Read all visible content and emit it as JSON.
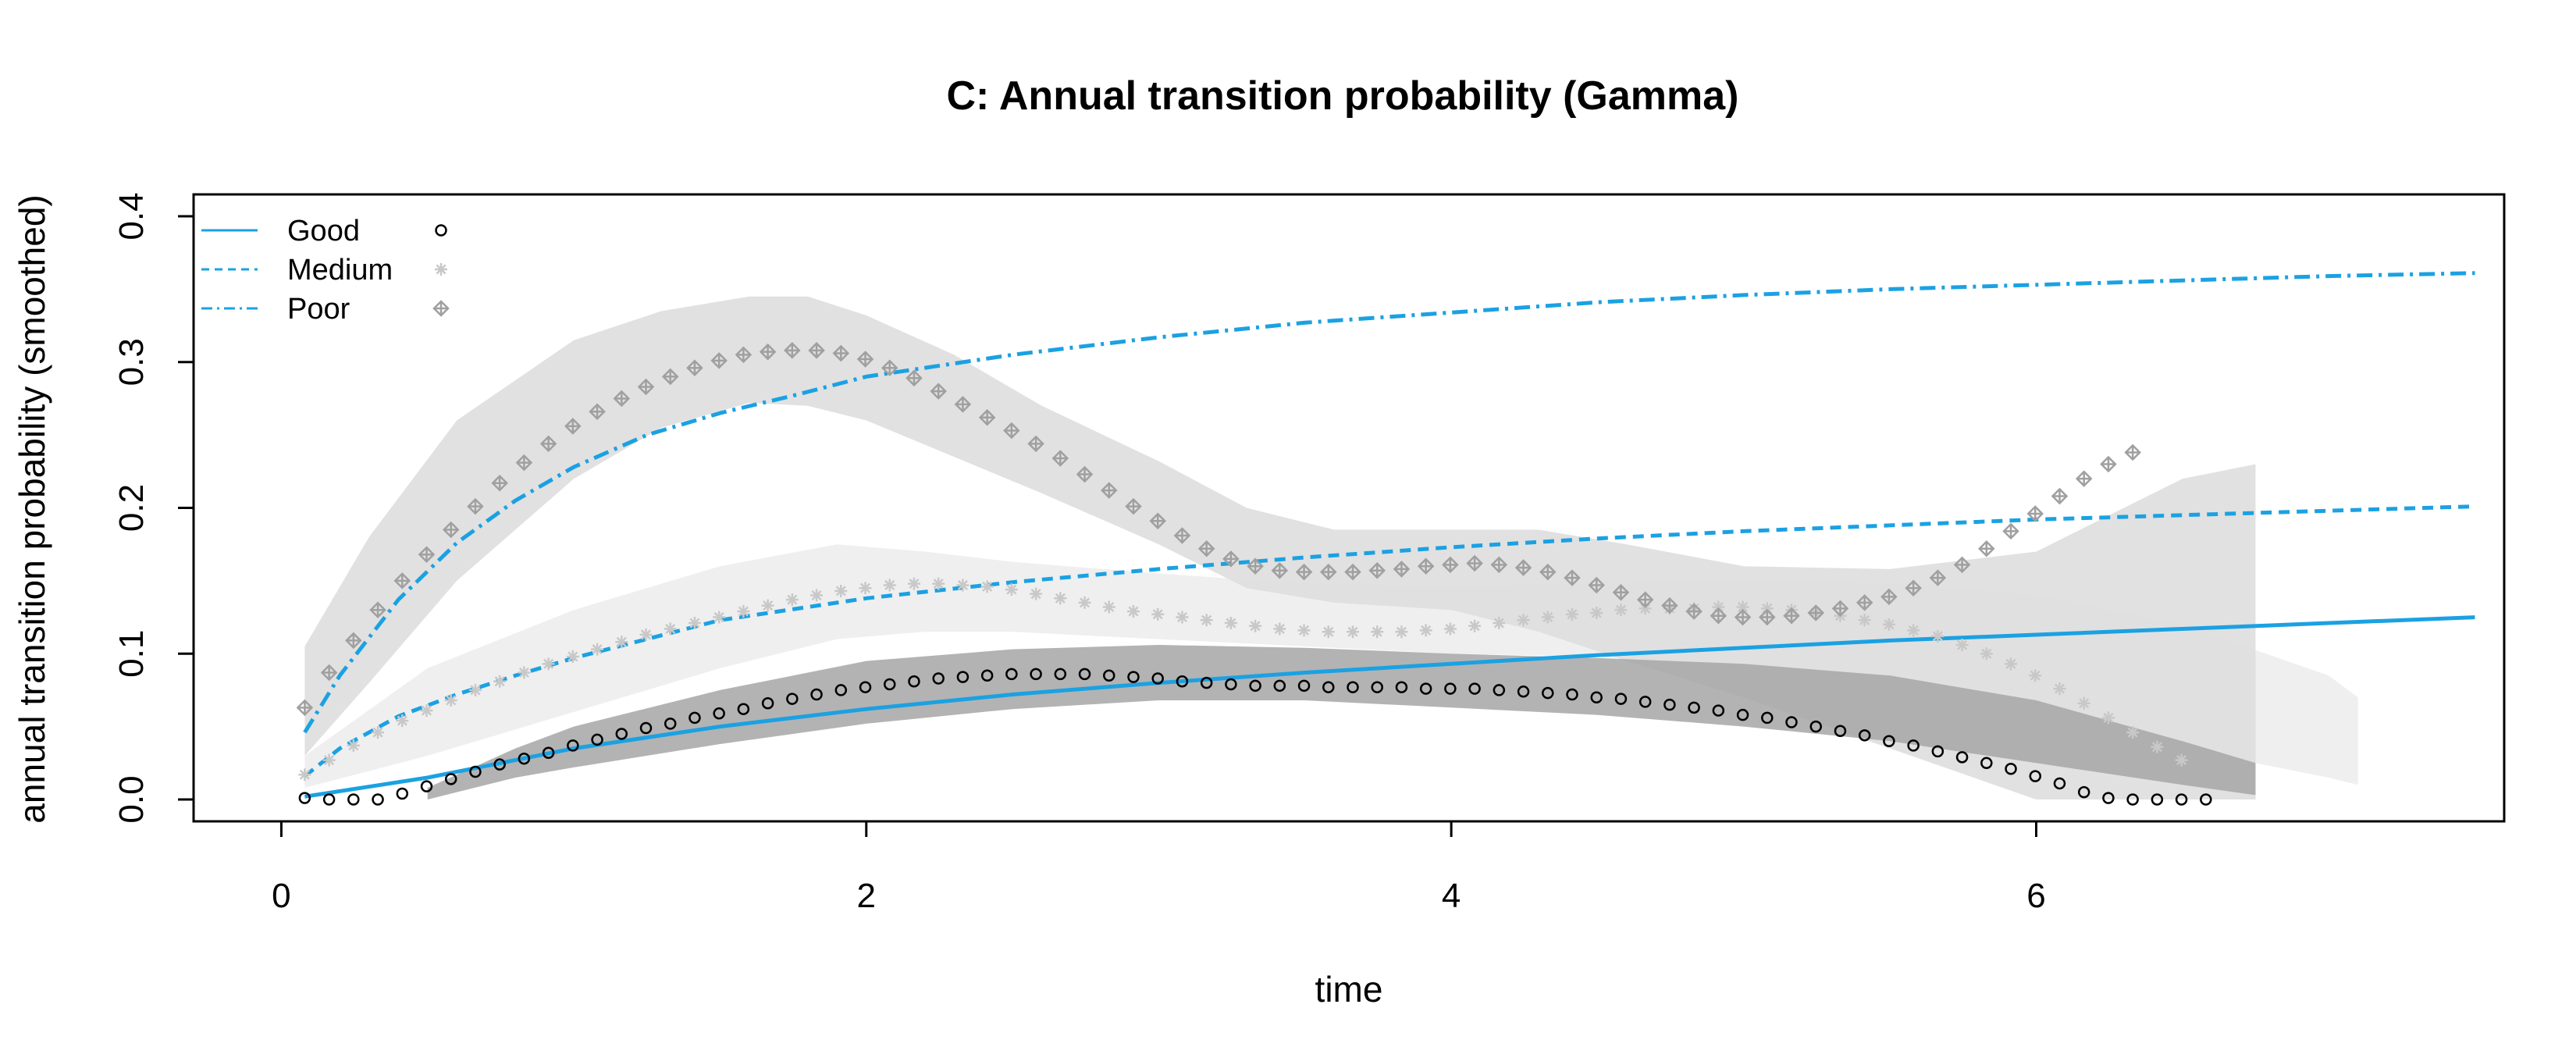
{
  "chart_data": {
    "type": "line",
    "title": "C: Annual transition probability (Gamma)",
    "xlabel": "time",
    "ylabel": "annual transition probability (smoothed)",
    "xlim": [
      -0.3,
      7.6
    ],
    "ylim": [
      -0.015,
      0.415
    ],
    "x_ticks": [
      0,
      2,
      4,
      6
    ],
    "x_tick_labels": [
      "0",
      "2",
      "4",
      "6"
    ],
    "y_ticks": [
      0.0,
      0.1,
      0.2,
      0.3,
      0.4
    ],
    "y_tick_labels": [
      "0.0",
      "0.1",
      "0.2",
      "0.3",
      "0.4"
    ],
    "grid": false,
    "legend_position": "top-left",
    "legend": [
      {
        "label": "Good",
        "line": "solid",
        "marker": "circle"
      },
      {
        "label": "Medium",
        "line": "dashed",
        "marker": "asterisk"
      },
      {
        "label": "Poor",
        "line": "dashdot",
        "marker": "diamond-plus"
      }
    ],
    "colors": {
      "model_line": "#1ba1e2",
      "good_band": "#a6a6a6",
      "medium_band": "#ededed",
      "poor_band": "#dedede",
      "good_points": "#000000",
      "medium_points": "#c8c8c8",
      "poor_points": "#a0a0a0"
    },
    "lines": [
      {
        "name": "Good",
        "style": "solid",
        "x": [
          0.08,
          0.5,
          1,
          1.5,
          2,
          2.5,
          3,
          3.5,
          4,
          4.5,
          5,
          5.5,
          6,
          6.5,
          7,
          7.5
        ],
        "y": [
          0.002,
          0.015,
          0.035,
          0.05,
          0.062,
          0.072,
          0.08,
          0.087,
          0.093,
          0.099,
          0.104,
          0.109,
          0.113,
          0.117,
          0.121,
          0.125
        ]
      },
      {
        "name": "Medium",
        "style": "dashed",
        "x": [
          0.08,
          0.2,
          0.4,
          0.6,
          0.8,
          1,
          1.5,
          2,
          2.5,
          3,
          3.5,
          4,
          4.5,
          5,
          5.5,
          6,
          6.5,
          7,
          7.5
        ],
        "y": [
          0.016,
          0.035,
          0.057,
          0.072,
          0.085,
          0.097,
          0.123,
          0.138,
          0.149,
          0.158,
          0.166,
          0.173,
          0.179,
          0.184,
          0.188,
          0.192,
          0.195,
          0.198,
          0.201
        ]
      },
      {
        "name": "Poor",
        "style": "dashdot",
        "x": [
          0.08,
          0.2,
          0.4,
          0.6,
          0.8,
          1,
          1.25,
          1.5,
          1.75,
          2,
          2.5,
          3,
          3.5,
          4,
          4.5,
          5,
          5.5,
          6,
          6.5,
          7,
          7.5
        ],
        "y": [
          0.046,
          0.085,
          0.137,
          0.176,
          0.205,
          0.228,
          0.25,
          0.265,
          0.277,
          0.29,
          0.305,
          0.317,
          0.327,
          0.334,
          0.341,
          0.346,
          0.35,
          0.353,
          0.356,
          0.359,
          0.361
        ]
      }
    ],
    "bands": [
      {
        "name": "Medium",
        "x": [
          0.08,
          0.5,
          1,
          1.5,
          1.9,
          2.2,
          2.5,
          3,
          3.5,
          4,
          4.5,
          5,
          5.5,
          6,
          6.5,
          7,
          7.1
        ],
        "lower": [
          0.008,
          0.03,
          0.06,
          0.09,
          0.11,
          0.115,
          0.115,
          0.11,
          0.105,
          0.1,
          0.098,
          0.09,
          0.075,
          0.055,
          0.035,
          0.015,
          0.01
        ],
        "upper": [
          0.03,
          0.09,
          0.13,
          0.16,
          0.175,
          0.17,
          0.163,
          0.155,
          0.148,
          0.146,
          0.148,
          0.15,
          0.148,
          0.14,
          0.12,
          0.085,
          0.07
        ]
      },
      {
        "name": "Poor",
        "x": [
          0.08,
          0.3,
          0.6,
          1,
          1.3,
          1.6,
          1.8,
          2,
          2.3,
          2.6,
          3,
          3.3,
          3.6,
          4,
          4.3,
          4.6,
          5,
          5.5,
          6,
          6.3,
          6.5,
          6.75
        ],
        "lower": [
          0.03,
          0.08,
          0.15,
          0.22,
          0.255,
          0.272,
          0.27,
          0.26,
          0.235,
          0.21,
          0.175,
          0.145,
          0.135,
          0.13,
          0.115,
          0.095,
          0.07,
          0.035,
          0.0,
          0.0,
          0.0,
          0.0
        ],
        "upper": [
          0.105,
          0.18,
          0.26,
          0.315,
          0.335,
          0.345,
          0.345,
          0.332,
          0.305,
          0.27,
          0.232,
          0.2,
          0.185,
          0.185,
          0.185,
          0.175,
          0.16,
          0.158,
          0.17,
          0.2,
          0.22,
          0.23
        ]
      },
      {
        "name": "Good",
        "x": [
          0.5,
          0.8,
          1,
          1.5,
          2,
          2.5,
          3,
          3.5,
          4,
          4.5,
          5,
          5.5,
          6,
          6.5,
          6.75
        ],
        "lower": [
          0.0,
          0.015,
          0.022,
          0.038,
          0.052,
          0.062,
          0.068,
          0.068,
          0.063,
          0.058,
          0.05,
          0.04,
          0.025,
          0.01,
          0.003
        ],
        "upper": [
          0.008,
          0.035,
          0.05,
          0.075,
          0.095,
          0.103,
          0.106,
          0.104,
          0.1,
          0.097,
          0.093,
          0.085,
          0.068,
          0.04,
          0.025
        ]
      }
    ],
    "points": [
      {
        "name": "Good",
        "marker": "circle",
        "y": [
          0.001,
          0.0,
          0.0,
          0.0,
          0.004,
          0.009,
          0.014,
          0.019,
          0.024,
          0.028,
          0.032,
          0.037,
          0.041,
          0.045,
          0.049,
          0.052,
          0.056,
          0.059,
          0.062,
          0.066,
          0.069,
          0.072,
          0.075,
          0.077,
          0.079,
          0.081,
          0.083,
          0.084,
          0.085,
          0.086,
          0.086,
          0.086,
          0.086,
          0.085,
          0.084,
          0.083,
          0.081,
          0.08,
          0.079,
          0.078,
          0.078,
          0.078,
          0.077,
          0.077,
          0.077,
          0.077,
          0.076,
          0.076,
          0.076,
          0.075,
          0.074,
          0.073,
          0.072,
          0.07,
          0.069,
          0.067,
          0.065,
          0.063,
          0.061,
          0.058,
          0.056,
          0.053,
          0.05,
          0.047,
          0.044,
          0.04,
          0.037,
          0.033,
          0.029,
          0.025,
          0.021,
          0.016,
          0.011,
          0.005,
          0.001,
          0.0,
          0.0,
          0.0,
          0.0
        ]
      },
      {
        "name": "Medium",
        "marker": "asterisk",
        "y": [
          0.017,
          0.027,
          0.037,
          0.046,
          0.054,
          0.061,
          0.068,
          0.075,
          0.081,
          0.087,
          0.093,
          0.098,
          0.103,
          0.108,
          0.113,
          0.117,
          0.121,
          0.125,
          0.129,
          0.133,
          0.137,
          0.14,
          0.143,
          0.145,
          0.147,
          0.148,
          0.148,
          0.147,
          0.146,
          0.144,
          0.141,
          0.138,
          0.135,
          0.132,
          0.129,
          0.127,
          0.125,
          0.123,
          0.121,
          0.119,
          0.117,
          0.116,
          0.115,
          0.115,
          0.115,
          0.115,
          0.116,
          0.117,
          0.119,
          0.121,
          0.123,
          0.125,
          0.127,
          0.128,
          0.13,
          0.131,
          0.131,
          0.131,
          0.132,
          0.132,
          0.131,
          0.13,
          0.128,
          0.126,
          0.123,
          0.12,
          0.116,
          0.112,
          0.106,
          0.1,
          0.093,
          0.085,
          0.076,
          0.066,
          0.056,
          0.046,
          0.036,
          0.027
        ]
      },
      {
        "name": "Poor",
        "marker": "diamond-plus",
        "y": [
          0.063,
          0.087,
          0.109,
          0.13,
          0.15,
          0.168,
          0.185,
          0.201,
          0.217,
          0.231,
          0.244,
          0.256,
          0.266,
          0.275,
          0.283,
          0.29,
          0.296,
          0.301,
          0.305,
          0.307,
          0.308,
          0.308,
          0.306,
          0.302,
          0.296,
          0.289,
          0.28,
          0.271,
          0.262,
          0.253,
          0.244,
          0.234,
          0.223,
          0.212,
          0.201,
          0.191,
          0.181,
          0.172,
          0.165,
          0.16,
          0.157,
          0.156,
          0.156,
          0.156,
          0.157,
          0.158,
          0.16,
          0.161,
          0.162,
          0.161,
          0.159,
          0.156,
          0.152,
          0.147,
          0.142,
          0.137,
          0.133,
          0.129,
          0.126,
          0.125,
          0.125,
          0.126,
          0.128,
          0.131,
          0.135,
          0.139,
          0.145,
          0.152,
          0.161,
          0.172,
          0.184,
          0.196,
          0.208,
          0.22,
          0.23,
          0.238
        ]
      }
    ]
  }
}
